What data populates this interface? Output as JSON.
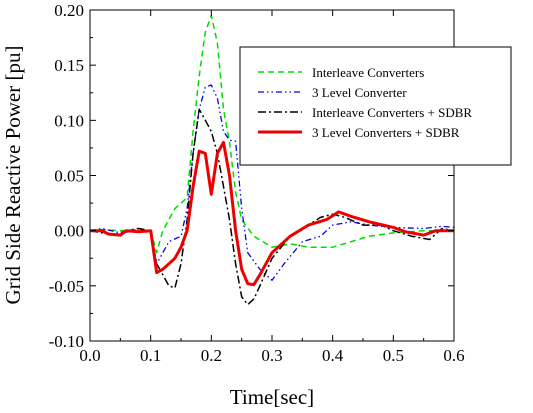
{
  "chart_data": {
    "type": "line",
    "title": "",
    "xlabel": "Time[sec]",
    "ylabel": "Grid Side Reactive Power [pu]",
    "xlim": [
      0.0,
      0.6
    ],
    "ylim": [
      -0.1,
      0.2
    ],
    "x_ticks": [
      "0.0",
      "0.1",
      "0.2",
      "0.3",
      "0.4",
      "0.5",
      "0.6"
    ],
    "y_ticks": [
      "-0.10",
      "-0.05",
      "0.00",
      "0.05",
      "0.10",
      "0.15",
      "0.20"
    ],
    "grid": false,
    "legend_position": "top-right",
    "series": [
      {
        "name": "Interleave Converters",
        "color": "#00dd00",
        "style": "dashed",
        "points": [
          [
            0.0,
            0.0
          ],
          [
            0.02,
            0.001
          ],
          [
            0.05,
            0.0
          ],
          [
            0.08,
            0.001
          ],
          [
            0.1,
            0.0
          ],
          [
            0.11,
            -0.02
          ],
          [
            0.12,
            0.0
          ],
          [
            0.14,
            0.02
          ],
          [
            0.16,
            0.03
          ],
          [
            0.17,
            0.09
          ],
          [
            0.18,
            0.14
          ],
          [
            0.19,
            0.18
          ],
          [
            0.2,
            0.195
          ],
          [
            0.21,
            0.17
          ],
          [
            0.22,
            0.11
          ],
          [
            0.23,
            0.08
          ],
          [
            0.24,
            0.035
          ],
          [
            0.25,
            0.01
          ],
          [
            0.27,
            -0.005
          ],
          [
            0.3,
            -0.015
          ],
          [
            0.33,
            -0.012
          ],
          [
            0.36,
            -0.015
          ],
          [
            0.4,
            -0.015
          ],
          [
            0.43,
            -0.01
          ],
          [
            0.46,
            -0.005
          ],
          [
            0.5,
            -0.002
          ],
          [
            0.55,
            0.0
          ],
          [
            0.6,
            0.0
          ]
        ]
      },
      {
        "name": "3 Level Converter",
        "color": "#0000ee",
        "style": "dash-dot-dot",
        "points": [
          [
            0.0,
            0.0
          ],
          [
            0.02,
            0.002
          ],
          [
            0.05,
            -0.002
          ],
          [
            0.08,
            0.0
          ],
          [
            0.1,
            0.0
          ],
          [
            0.11,
            -0.03
          ],
          [
            0.13,
            -0.01
          ],
          [
            0.15,
            -0.005
          ],
          [
            0.16,
            0.02
          ],
          [
            0.17,
            0.07
          ],
          [
            0.18,
            0.11
          ],
          [
            0.19,
            0.13
          ],
          [
            0.2,
            0.132
          ],
          [
            0.21,
            0.12
          ],
          [
            0.22,
            0.09
          ],
          [
            0.23,
            0.082
          ],
          [
            0.24,
            0.081
          ],
          [
            0.25,
            0.02
          ],
          [
            0.26,
            -0.02
          ],
          [
            0.28,
            -0.035
          ],
          [
            0.3,
            -0.045
          ],
          [
            0.32,
            -0.03
          ],
          [
            0.35,
            -0.01
          ],
          [
            0.38,
            -0.005
          ],
          [
            0.4,
            0.005
          ],
          [
            0.43,
            0.008
          ],
          [
            0.46,
            0.005
          ],
          [
            0.5,
            0.003
          ],
          [
            0.55,
            0.002
          ],
          [
            0.58,
            0.004
          ],
          [
            0.6,
            0.003
          ]
        ]
      },
      {
        "name": "Interleave Converters + SDBR",
        "color": "#000000",
        "style": "dash-dot",
        "points": [
          [
            0.0,
            0.0
          ],
          [
            0.02,
            -0.002
          ],
          [
            0.04,
            -0.004
          ],
          [
            0.06,
            0.0
          ],
          [
            0.08,
            0.002
          ],
          [
            0.1,
            0.0
          ],
          [
            0.11,
            -0.03
          ],
          [
            0.13,
            -0.05
          ],
          [
            0.14,
            -0.052
          ],
          [
            0.15,
            -0.03
          ],
          [
            0.16,
            0.01
          ],
          [
            0.17,
            0.07
          ],
          [
            0.18,
            0.11
          ],
          [
            0.19,
            0.1
          ],
          [
            0.2,
            0.09
          ],
          [
            0.21,
            0.07
          ],
          [
            0.22,
            0.04
          ],
          [
            0.23,
            0.01
          ],
          [
            0.24,
            -0.03
          ],
          [
            0.25,
            -0.06
          ],
          [
            0.26,
            -0.067
          ],
          [
            0.27,
            -0.062
          ],
          [
            0.28,
            -0.05
          ],
          [
            0.3,
            -0.025
          ],
          [
            0.33,
            -0.005
          ],
          [
            0.36,
            0.005
          ],
          [
            0.38,
            0.012
          ],
          [
            0.4,
            0.015
          ],
          [
            0.42,
            0.012
          ],
          [
            0.45,
            0.005
          ],
          [
            0.48,
            0.005
          ],
          [
            0.5,
            0.0
          ],
          [
            0.53,
            -0.005
          ],
          [
            0.56,
            -0.008
          ],
          [
            0.58,
            0.002
          ],
          [
            0.6,
            0.0
          ]
        ]
      },
      {
        "name": "3 Level Converters + SDBR",
        "color": "#ee0000",
        "style": "solid",
        "points": [
          [
            0.0,
            0.0
          ],
          [
            0.02,
            0.0
          ],
          [
            0.03,
            -0.003
          ],
          [
            0.05,
            -0.004
          ],
          [
            0.06,
            0.0
          ],
          [
            0.08,
            -0.001
          ],
          [
            0.1,
            0.0
          ],
          [
            0.11,
            -0.038
          ],
          [
            0.12,
            -0.035
          ],
          [
            0.14,
            -0.025
          ],
          [
            0.15,
            -0.015
          ],
          [
            0.16,
            0.0
          ],
          [
            0.17,
            0.04
          ],
          [
            0.18,
            0.072
          ],
          [
            0.19,
            0.07
          ],
          [
            0.2,
            0.033
          ],
          [
            0.21,
            0.07
          ],
          [
            0.22,
            0.08
          ],
          [
            0.23,
            0.05
          ],
          [
            0.24,
            0.0
          ],
          [
            0.25,
            -0.035
          ],
          [
            0.26,
            -0.048
          ],
          [
            0.27,
            -0.049
          ],
          [
            0.28,
            -0.04
          ],
          [
            0.3,
            -0.02
          ],
          [
            0.33,
            -0.005
          ],
          [
            0.36,
            0.005
          ],
          [
            0.39,
            0.01
          ],
          [
            0.41,
            0.017
          ],
          [
            0.43,
            0.013
          ],
          [
            0.46,
            0.008
          ],
          [
            0.5,
            0.003
          ],
          [
            0.52,
            -0.001
          ],
          [
            0.55,
            -0.004
          ],
          [
            0.57,
            0.0
          ],
          [
            0.6,
            0.0
          ]
        ]
      }
    ]
  }
}
